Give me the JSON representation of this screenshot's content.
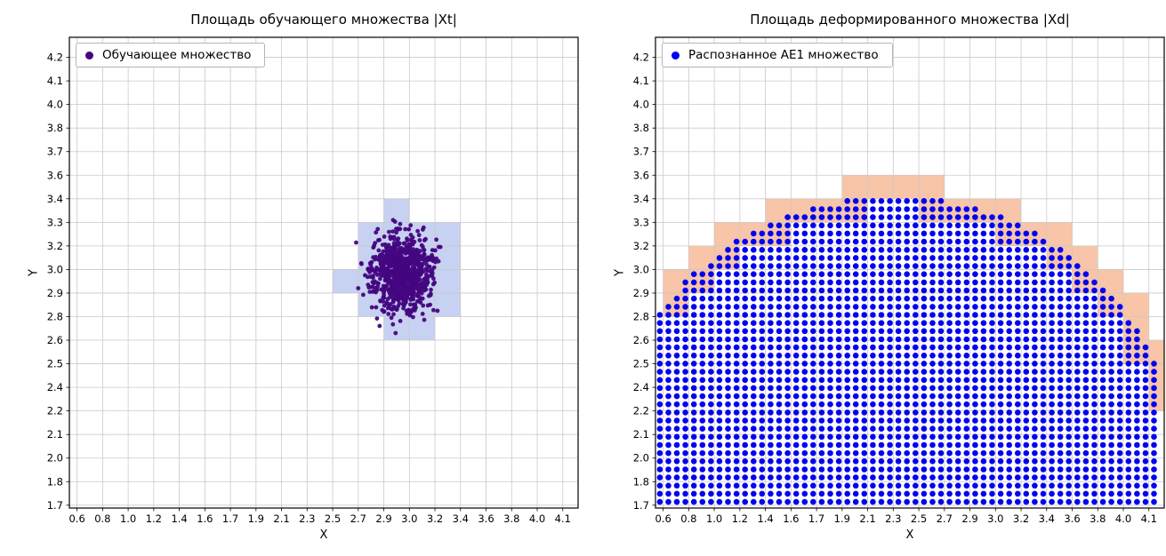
{
  "figure": {
    "background": "#ffffff",
    "grid_color": "#c9c9c9",
    "border_color": "#000000",
    "text_color": "#000000"
  },
  "chart_data": [
    {
      "type": "scatter",
      "title": "Площадь обучающего множества |Xt|",
      "xlabel": "X",
      "ylabel": "Y",
      "grid": true,
      "legend": {
        "label": "Обучающее множество",
        "position": "upper left"
      },
      "marker_color": "#43067f",
      "x_ticks": [
        "0.6",
        "0.8",
        "1.0",
        "1.2",
        "1.4",
        "1.6",
        "1.7",
        "1.9",
        "2.1",
        "2.3",
        "2.5",
        "2.7",
        "2.9",
        "3.0",
        "3.2",
        "3.4",
        "3.6",
        "3.8",
        "4.0",
        "4.1"
      ],
      "y_ticks": [
        "1.7",
        "1.8",
        "2.0",
        "2.1",
        "2.2",
        "2.4",
        "2.5",
        "2.6",
        "2.8",
        "2.9",
        "3.0",
        "3.2",
        "3.3",
        "3.4",
        "3.6",
        "3.7",
        "3.8",
        "4.0",
        "4.1",
        "4.2"
      ],
      "cluster": {
        "description": "Gaussian cloud of training points",
        "center_xy": [
          3.0,
          3.0
        ],
        "approx_std": 0.1,
        "n_points": 850,
        "x_extent": [
          2.75,
          3.35
        ],
        "y_extent": [
          2.6,
          3.4
        ],
        "center_grid": [
          12.7,
          9.9
        ],
        "sigma_grid": [
          0.58,
          0.85
        ]
      },
      "covered_cells_color": "#c7d1f1",
      "covered_cells": [
        [
          12,
          12
        ],
        [
          11,
          11
        ],
        [
          12,
          11
        ],
        [
          13,
          11
        ],
        [
          14,
          11
        ],
        [
          11,
          10
        ],
        [
          12,
          10
        ],
        [
          13,
          10
        ],
        [
          14,
          10
        ],
        [
          10,
          9
        ],
        [
          11,
          9
        ],
        [
          12,
          9
        ],
        [
          13,
          9
        ],
        [
          14,
          9
        ],
        [
          11,
          8
        ],
        [
          12,
          8
        ],
        [
          13,
          8
        ],
        [
          14,
          8
        ],
        [
          12,
          7
        ],
        [
          13,
          7
        ]
      ]
    },
    {
      "type": "scatter",
      "title": "Площадь деформированного множества |Xd|",
      "xlabel": "X",
      "ylabel": "Y",
      "grid": true,
      "legend": {
        "label": "Распознанное АЕ1 множество",
        "position": "upper left"
      },
      "marker_color": "#0202f0",
      "x_ticks": [
        "0.6",
        "0.8",
        "1.0",
        "1.2",
        "1.4",
        "1.6",
        "1.7",
        "1.9",
        "2.1",
        "2.3",
        "2.5",
        "2.7",
        "2.9",
        "3.0",
        "3.2",
        "3.4",
        "3.6",
        "3.8",
        "4.0",
        "4.1"
      ],
      "y_ticks": [
        "1.7",
        "1.8",
        "2.0",
        "2.1",
        "2.2",
        "2.4",
        "2.5",
        "2.6",
        "2.8",
        "2.9",
        "3.0",
        "3.2",
        "3.3",
        "3.4",
        "3.6",
        "3.7",
        "3.8",
        "4.0",
        "4.1",
        "4.2"
      ],
      "region": {
        "description": "dome-shaped lattice of recognized points filling area from base line upward",
        "x_extent": [
          0.6,
          4.2
        ],
        "base_y": 1.72,
        "peak_xy": [
          2.4,
          3.42
        ],
        "left_edge_top_y": 2.75,
        "right_edge_top_y": 2.2,
        "circle_grid": {
          "cx": 9.0,
          "cy": 2.2,
          "r": 10.9
        },
        "point_spacing_grid": [
          0.3333,
          0.345
        ]
      },
      "boundary_cells_color": "#f8c5a8"
    }
  ]
}
